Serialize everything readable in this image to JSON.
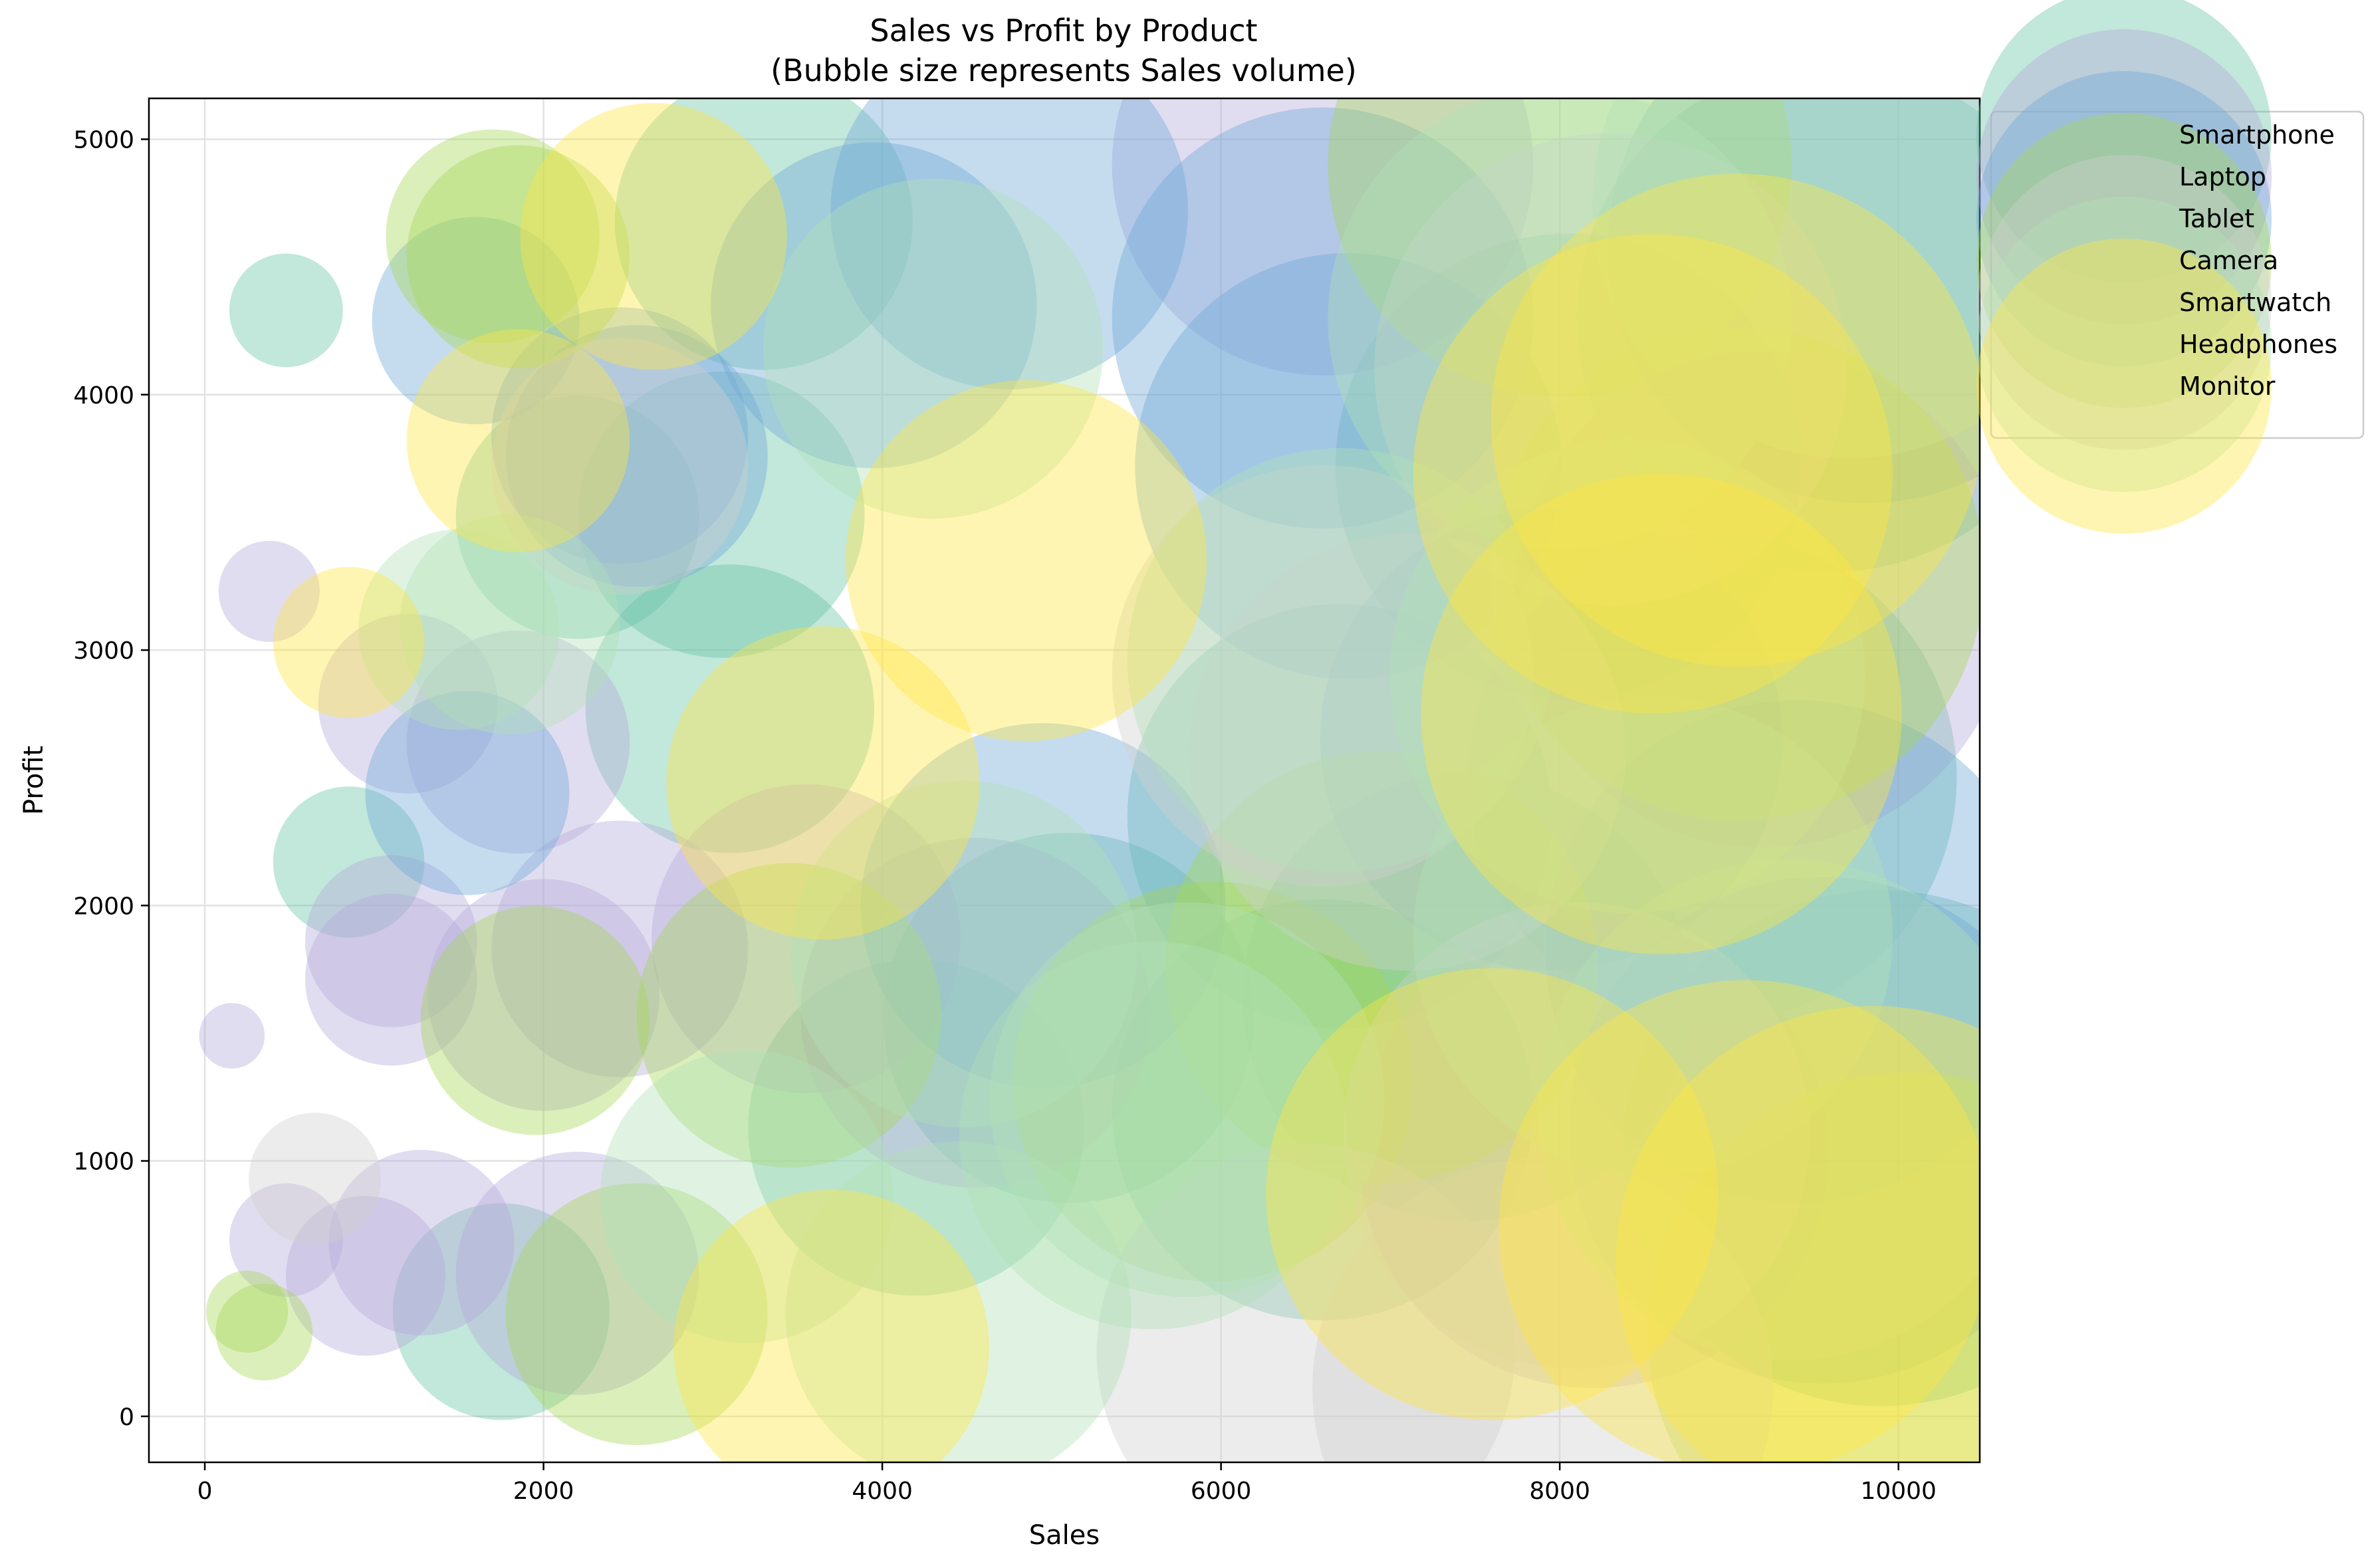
{
  "chart_data": {
    "type": "scatter",
    "title": "Sales vs Profit by Product",
    "subtitle": "(Bubble size represents Sales volume)",
    "xlabel": "Sales",
    "ylabel": "Profit",
    "xlim": [
      -330,
      10480
    ],
    "ylim": [
      -180,
      5160
    ],
    "xticks": [
      0,
      2000,
      4000,
      6000,
      8000,
      10000
    ],
    "yticks": [
      0,
      1000,
      2000,
      3000,
      4000,
      5000
    ],
    "grid": true,
    "legend_position": "top-right outside",
    "bubble_size_encodes": "Sales",
    "marker_opacity": 0.4,
    "series": [
      {
        "name": "Smartphone",
        "color": "#66c2a5",
        "points": [
          {
            "x": 480,
            "y": 4330
          },
          {
            "x": 850,
            "y": 2170
          },
          {
            "x": 1750,
            "y": 410
          },
          {
            "x": 2200,
            "y": 3520
          },
          {
            "x": 3050,
            "y": 3530
          },
          {
            "x": 3100,
            "y": 2770
          },
          {
            "x": 3300,
            "y": 4680
          },
          {
            "x": 4200,
            "y": 1130
          },
          {
            "x": 5100,
            "y": 1560
          },
          {
            "x": 6600,
            "y": 1200
          },
          {
            "x": 6700,
            "y": 2350
          },
          {
            "x": 7450,
            "y": 1640
          },
          {
            "x": 8050,
            "y": 3720
          },
          {
            "x": 8900,
            "y": 2500
          },
          {
            "x": 9600,
            "y": 4300
          },
          {
            "x": 9900,
            "y": 1050
          }
        ]
      },
      {
        "name": "Laptop",
        "color": "#b3a9d9",
        "points": [
          {
            "x": 160,
            "y": 1490
          },
          {
            "x": 380,
            "y": 3230
          },
          {
            "x": 480,
            "y": 690
          },
          {
            "x": 950,
            "y": 550
          },
          {
            "x": 1100,
            "y": 1860
          },
          {
            "x": 1100,
            "y": 1710
          },
          {
            "x": 1200,
            "y": 2790
          },
          {
            "x": 1280,
            "y": 680
          },
          {
            "x": 1850,
            "y": 2640
          },
          {
            "x": 2000,
            "y": 1650
          },
          {
            "x": 2200,
            "y": 560
          },
          {
            "x": 2450,
            "y": 1830
          },
          {
            "x": 3550,
            "y": 1870
          },
          {
            "x": 4550,
            "y": 1580
          },
          {
            "x": 6600,
            "y": 4900
          },
          {
            "x": 8200,
            "y": 1030
          },
          {
            "x": 9200,
            "y": 3200
          }
        ]
      },
      {
        "name": "Tablet",
        "color": "#6fa8d6",
        "points": [
          {
            "x": 1600,
            "y": 4290
          },
          {
            "x": 1550,
            "y": 2440
          },
          {
            "x": 2450,
            "y": 3840
          },
          {
            "x": 2550,
            "y": 3760
          },
          {
            "x": 3950,
            "y": 4350
          },
          {
            "x": 4750,
            "y": 4720
          },
          {
            "x": 4950,
            "y": 2000
          },
          {
            "x": 6600,
            "y": 4300
          },
          {
            "x": 6750,
            "y": 3720
          },
          {
            "x": 7950,
            "y": 2650
          },
          {
            "x": 9400,
            "y": 1820
          },
          {
            "x": 9550,
            "y": 1120
          },
          {
            "x": 9800,
            "y": 4580
          }
        ]
      },
      {
        "name": "Camera",
        "color": "#a6d854",
        "points": [
          {
            "x": 250,
            "y": 410
          },
          {
            "x": 350,
            "y": 330
          },
          {
            "x": 1700,
            "y": 4620
          },
          {
            "x": 1850,
            "y": 4540
          },
          {
            "x": 1950,
            "y": 1550
          },
          {
            "x": 2550,
            "y": 400
          },
          {
            "x": 3450,
            "y": 1570
          },
          {
            "x": 5950,
            "y": 1310
          },
          {
            "x": 6950,
            "y": 1760
          },
          {
            "x": 8000,
            "y": 4900
          },
          {
            "x": 9050,
            "y": 3300
          },
          {
            "x": 10050,
            "y": 330
          }
        ]
      },
      {
        "name": "Smartwatch",
        "color": "#cfcfcf",
        "points": [
          {
            "x": 650,
            "y": 930
          },
          {
            "x": 2450,
            "y": 3720
          },
          {
            "x": 6500,
            "y": 250
          },
          {
            "x": 6600,
            "y": 2900
          },
          {
            "x": 7100,
            "y": 2600
          },
          {
            "x": 7900,
            "y": 110
          },
          {
            "x": 8100,
            "y": 1100
          },
          {
            "x": 8300,
            "y": 4100
          }
        ]
      },
      {
        "name": "Headphones",
        "color": "#b2e0b7",
        "points": [
          {
            "x": 1500,
            "y": 3080
          },
          {
            "x": 1800,
            "y": 3100
          },
          {
            "x": 3200,
            "y": 860
          },
          {
            "x": 4300,
            "y": 4180
          },
          {
            "x": 4450,
            "y": 400
          },
          {
            "x": 4480,
            "y": 1810
          },
          {
            "x": 5600,
            "y": 1100
          },
          {
            "x": 5800,
            "y": 1240
          },
          {
            "x": 6700,
            "y": 2960
          },
          {
            "x": 8000,
            "y": 4300
          },
          {
            "x": 8400,
            "y": 2900
          },
          {
            "x": 8550,
            "y": 1880
          },
          {
            "x": 9350,
            "y": 1200
          },
          {
            "x": 9700,
            "y": 4750
          }
        ]
      },
      {
        "name": "Monitor",
        "color": "#ffe642",
        "points": [
          {
            "x": 850,
            "y": 3030
          },
          {
            "x": 1850,
            "y": 3820
          },
          {
            "x": 2650,
            "y": 4620
          },
          {
            "x": 3650,
            "y": 2480
          },
          {
            "x": 3700,
            "y": 270
          },
          {
            "x": 4850,
            "y": 3350
          },
          {
            "x": 7600,
            "y": 870
          },
          {
            "x": 8550,
            "y": 3690
          },
          {
            "x": 8600,
            "y": 2750
          },
          {
            "x": 9050,
            "y": 3900
          },
          {
            "x": 9100,
            "y": 740
          },
          {
            "x": 9850,
            "y": 600
          }
        ]
      }
    ]
  }
}
